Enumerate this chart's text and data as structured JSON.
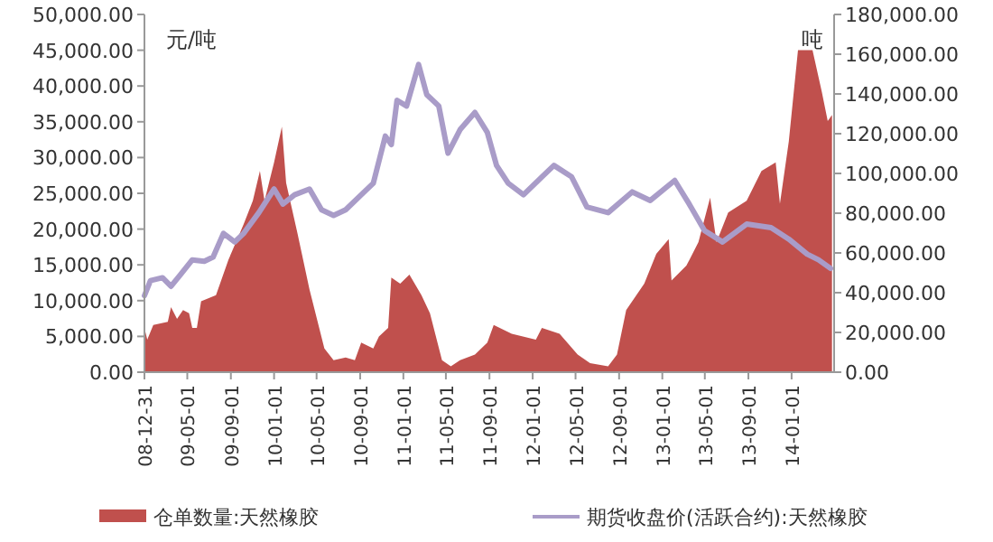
{
  "chart_data": {
    "type": "area",
    "ylabel": "元/吨",
    "y2label": "吨",
    "legend": "bottom",
    "grid": false,
    "xlim": [
      "2008-12-31",
      "2014-05-01"
    ],
    "xticks": [
      {
        "value": "2008-12-31",
        "label": "08-12-31"
      },
      {
        "value": "2009-05-01",
        "label": "09-05-01"
      },
      {
        "value": "2009-09-01",
        "label": "09-09-01"
      },
      {
        "value": "2010-01-01",
        "label": "10-01-01"
      },
      {
        "value": "2010-05-01",
        "label": "10-05-01"
      },
      {
        "value": "2010-09-01",
        "label": "10-09-01"
      },
      {
        "value": "2011-01-01",
        "label": "11-01-01"
      },
      {
        "value": "2011-05-01",
        "label": "11-05-01"
      },
      {
        "value": "2011-09-01",
        "label": "11-09-01"
      },
      {
        "value": "2012-01-01",
        "label": "12-01-01"
      },
      {
        "value": "2012-05-01",
        "label": "12-05-01"
      },
      {
        "value": "2012-09-01",
        "label": "12-09-01"
      },
      {
        "value": "2013-01-01",
        "label": "13-01-01"
      },
      {
        "value": "2013-05-01",
        "label": "13-05-01"
      },
      {
        "value": "2013-09-01",
        "label": "13-09-01"
      },
      {
        "value": "2014-01-01",
        "label": "14-01-01"
      }
    ],
    "ylim": [
      0,
      50000
    ],
    "yticks": [
      {
        "value": 0,
        "label": "0.00"
      },
      {
        "value": 5000,
        "label": "5,000.00"
      },
      {
        "value": 10000,
        "label": "10,000.00"
      },
      {
        "value": 15000,
        "label": "15,000.00"
      },
      {
        "value": 20000,
        "label": "20,000.00"
      },
      {
        "value": 25000,
        "label": "25,000.00"
      },
      {
        "value": 30000,
        "label": "30,000.00"
      },
      {
        "value": 35000,
        "label": "35,000.00"
      },
      {
        "value": 40000,
        "label": "40,000.00"
      },
      {
        "value": 45000,
        "label": "45,000.00"
      },
      {
        "value": 50000,
        "label": "50,000.00"
      }
    ],
    "y2lim": [
      0,
      180000
    ],
    "y2ticks": [
      {
        "value": 0,
        "label": "0.00"
      },
      {
        "value": 20000,
        "label": "20,000.00"
      },
      {
        "value": 40000,
        "label": "40,000.00"
      },
      {
        "value": 60000,
        "label": "60,000.00"
      },
      {
        "value": 80000,
        "label": "80,000.00"
      },
      {
        "value": 100000,
        "label": "100,000.00"
      },
      {
        "value": 120000,
        "label": "120,000.00"
      },
      {
        "value": 140000,
        "label": "140,000.00"
      },
      {
        "value": 160000,
        "label": "160,000.00"
      },
      {
        "value": 180000,
        "label": "180,000.00"
      }
    ],
    "series": [
      {
        "name": "仓单数量:天然橡胶",
        "axis": "y2",
        "color": "#c0504d",
        "x": [
          "2008-12-31",
          "2009-01-08",
          "2009-01-25",
          "2009-03-07",
          "2009-03-16",
          "2009-04-02",
          "2009-04-19",
          "2009-05-06",
          "2009-05-15",
          "2009-05-28",
          "2009-06-09",
          "2009-07-21",
          "2009-08-25",
          "2009-10-07",
          "2009-11-02",
          "2009-11-22",
          "2009-12-05",
          "2010-01-01",
          "2010-01-23",
          "2010-02-04",
          "2010-03-08",
          "2010-04-11",
          "2010-05-23",
          "2010-06-18",
          "2010-07-22",
          "2010-08-17",
          "2010-09-04",
          "2010-10-08",
          "2010-10-24",
          "2010-11-19",
          "2010-11-28",
          "2010-12-23",
          "2011-01-18",
          "2011-02-21",
          "2011-03-17",
          "2011-04-20",
          "2011-05-15",
          "2011-06-10",
          "2011-07-22",
          "2011-08-26",
          "2011-09-13",
          "2011-11-03",
          "2012-01-10",
          "2012-01-27",
          "2012-03-17",
          "2012-05-07",
          "2012-06-11",
          "2012-08-01",
          "2012-08-26",
          "2012-09-21",
          "2012-11-11",
          "2012-12-15",
          "2013-01-19",
          "2013-01-27",
          "2013-03-10",
          "2013-04-13",
          "2013-05-16",
          "2013-06-03",
          "2013-07-06",
          "2013-08-27",
          "2013-10-08",
          "2013-11-17",
          "2013-11-29",
          "2013-12-24",
          "2014-01-19",
          "2014-03-01",
          "2014-03-27",
          "2014-04-13",
          "2014-04-25"
        ],
        "values": [
          22300,
          16400,
          23800,
          25300,
          32700,
          26800,
          31200,
          29700,
          22300,
          22300,
          35700,
          38700,
          56500,
          74400,
          86300,
          101200,
          86300,
          105600,
          123500,
          95200,
          69900,
          41600,
          11900,
          6000,
          7400,
          6000,
          14900,
          11900,
          17900,
          22300,
          47600,
          44600,
          49100,
          38700,
          29700,
          6000,
          3000,
          6000,
          8900,
          14900,
          23800,
          19300,
          16400,
          22300,
          19300,
          8900,
          4500,
          3000,
          8900,
          31200,
          44600,
          59500,
          66900,
          46100,
          53600,
          65500,
          87800,
          65500,
          80300,
          86300,
          101200,
          105600,
          84800,
          116000,
          162100,
          162100,
          141300,
          126400,
          129400
        ]
      },
      {
        "name": "期货收盘价(活跃合约):天然橡胶",
        "type": "line",
        "color": "#a99cc8",
        "x": [
          "2008-12-31",
          "2009-01-17",
          "2009-02-20",
          "2009-03-16",
          "2009-04-11",
          "2009-05-15",
          "2009-06-18",
          "2009-07-13",
          "2009-08-11",
          "2009-09-12",
          "2009-10-07",
          "2009-11-19",
          "2010-01-01",
          "2010-01-26",
          "2010-02-28",
          "2010-04-11",
          "2010-05-15",
          "2010-06-18",
          "2010-07-22",
          "2010-09-04",
          "2010-10-08",
          "2010-11-11",
          "2010-11-28",
          "2010-12-14",
          "2011-01-10",
          "2011-02-13",
          "2011-03-08",
          "2011-04-11",
          "2011-05-07",
          "2011-06-10",
          "2011-07-22",
          "2011-08-26",
          "2011-09-21",
          "2011-10-24",
          "2011-12-06",
          "2012-01-27",
          "2012-03-01",
          "2012-04-20",
          "2012-06-02",
          "2012-08-01",
          "2012-10-08",
          "2012-11-28",
          "2013-02-05",
          "2013-03-18",
          "2013-04-30",
          "2013-06-20",
          "2013-08-27",
          "2013-11-04",
          "2013-12-24",
          "2014-02-14",
          "2014-03-18",
          "2014-04-21"
        ],
        "values": [
          10700,
          12800,
          13200,
          12000,
          13600,
          15700,
          15500,
          16100,
          19400,
          18200,
          19400,
          22300,
          25600,
          23500,
          24800,
          25600,
          22700,
          21900,
          22700,
          24800,
          26400,
          33000,
          31800,
          38000,
          37200,
          43000,
          38800,
          37200,
          30600,
          33900,
          36300,
          33500,
          28900,
          26400,
          24800,
          27300,
          28900,
          27300,
          23100,
          22300,
          25200,
          24000,
          26800,
          23500,
          19800,
          18200,
          20700,
          20200,
          18600,
          16500,
          15700,
          14500
        ]
      }
    ]
  }
}
